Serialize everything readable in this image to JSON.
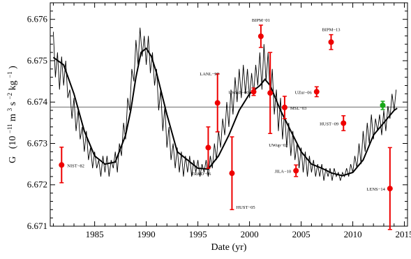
{
  "chart_data": {
    "type": "scatter",
    "xlabel": "Date  (yr)",
    "ylabel_main": "G",
    "ylabel_units": {
      "prefix": "(10",
      "exp1": "−11",
      "mid1": " m",
      "exp2": "3",
      "mid2": " s",
      "exp3": "−2",
      "mid3": " kg",
      "exp4": "−1",
      "suffix": ")"
    },
    "xlim": [
      1980.7,
      2015.3
    ],
    "ylim": [
      6.671,
      6.6764
    ],
    "x_ticks": [
      1985,
      1990,
      1995,
      2000,
      2005,
      2010,
      2015
    ],
    "y_ticks": [
      6.671,
      6.672,
      6.673,
      6.674,
      6.675,
      6.676
    ],
    "x_tick_labels": [
      "1985",
      "1990",
      "1995",
      "2000",
      "2005",
      "2010",
      "2015"
    ],
    "y_tick_labels": [
      "6.671",
      "6.672",
      "6.673",
      "6.674",
      "6.675",
      "6.676"
    ],
    "reference_line": 6.67388,
    "measurements": [
      {
        "label": "NIST−82",
        "x": 1981.8,
        "y": 6.67248,
        "err": 0.00043,
        "color": "#ee0000",
        "label_pos": "right"
      },
      {
        "label": "TR&D−96",
        "x": 1996.0,
        "y": 6.6729,
        "err": 0.0005,
        "color": "#ee0000",
        "label_pos": "below-left"
      },
      {
        "label": "LANL−97",
        "x": 1996.9,
        "y": 6.67398,
        "err": 0.0007,
        "color": "#ee0000",
        "label_pos": "above-right"
      },
      {
        "label": "HUST−05",
        "x": 1998.3,
        "y": 6.67228,
        "err": 0.00088,
        "color": "#ee0000",
        "label_pos": "below-right"
      },
      {
        "label": "UWash−00",
        "x": 2000.4,
        "y": 6.67425,
        "err": 9e-05,
        "color": "#ee0000",
        "label_pos": "left"
      },
      {
        "label": "BIPM−01",
        "x": 2001.1,
        "y": 6.67559,
        "err": 0.00027,
        "color": "#ee0000",
        "label_pos": "above"
      },
      {
        "label": "UWup−02",
        "x": 2002.0,
        "y": 6.67422,
        "err": 0.00098,
        "color": "#ee0000",
        "label_pos": "below-right"
      },
      {
        "label": "MSL−03",
        "x": 2003.4,
        "y": 6.67387,
        "err": 0.00027,
        "color": "#ee0000",
        "label_pos": "right"
      },
      {
        "label": "JILA−10",
        "x": 2004.5,
        "y": 6.67234,
        "err": 0.00014,
        "color": "#ee0000",
        "label_pos": "left"
      },
      {
        "label": "UZur−06",
        "x": 2006.5,
        "y": 6.67425,
        "err": 0.00012,
        "color": "#ee0000",
        "label_pos": "left"
      },
      {
        "label": "BIPM−13",
        "x": 2007.9,
        "y": 6.67545,
        "err": 0.00018,
        "color": "#ee0000",
        "label_pos": "above"
      },
      {
        "label": "HUST−09",
        "x": 2009.1,
        "y": 6.67349,
        "err": 0.00018,
        "color": "#ee0000",
        "label_pos": "left"
      },
      {
        "label": "LENS−14",
        "x": 2013.6,
        "y": 6.67191,
        "err": 0.00099,
        "color": "#ee0000",
        "label_pos": "left"
      },
      {
        "label": "",
        "x": 2012.9,
        "y": 6.67392,
        "err": 0.0001,
        "color": "#1aa81a",
        "label_pos": "none"
      }
    ],
    "smooth_curve": {
      "x": [
        1981.0,
        1982.0,
        1983.0,
        1984.0,
        1985.0,
        1986.0,
        1987.0,
        1988.0,
        1988.5,
        1989.0,
        1989.5,
        1990.0,
        1990.5,
        1991.0,
        1992.0,
        1993.0,
        1994.0,
        1995.0,
        1996.0,
        1997.0,
        1998.0,
        1999.0,
        2000.0,
        2001.0,
        2001.5,
        2002.0,
        2003.0,
        2004.0,
        2005.0,
        2006.0,
        2007.0,
        2008.0,
        2009.0,
        2010.0,
        2011.0,
        2012.0,
        2013.0,
        2014.0,
        2014.3
      ],
      "y": [
        6.67508,
        6.6749,
        6.6742,
        6.6733,
        6.6727,
        6.6725,
        6.67255,
        6.6732,
        6.6738,
        6.6746,
        6.6752,
        6.6753,
        6.6751,
        6.6747,
        6.6737,
        6.6728,
        6.6726,
        6.6724,
        6.67238,
        6.6727,
        6.6732,
        6.6738,
        6.6742,
        6.6744,
        6.67455,
        6.6744,
        6.6738,
        6.6733,
        6.6728,
        6.6725,
        6.6724,
        6.67228,
        6.67222,
        6.6723,
        6.6726,
        6.6732,
        6.6735,
        6.6738,
        6.67385
      ]
    },
    "noisy_curve": {
      "x": [
        1981.0,
        1981.2,
        1981.4,
        1981.6,
        1981.8,
        1982.0,
        1982.2,
        1982.4,
        1982.6,
        1982.8,
        1983.0,
        1983.2,
        1983.4,
        1983.6,
        1983.8,
        1984.0,
        1984.2,
        1984.4,
        1984.6,
        1984.8,
        1985.0,
        1985.2,
        1985.4,
        1985.6,
        1985.8,
        1986.0,
        1986.2,
        1986.4,
        1986.6,
        1986.8,
        1987.0,
        1987.2,
        1987.4,
        1987.6,
        1987.8,
        1988.0,
        1988.2,
        1988.4,
        1988.6,
        1988.8,
        1989.0,
        1989.2,
        1989.4,
        1989.6,
        1989.8,
        1990.0,
        1990.2,
        1990.4,
        1990.6,
        1990.8,
        1991.0,
        1991.2,
        1991.4,
        1991.6,
        1991.8,
        1992.0,
        1992.2,
        1992.4,
        1992.6,
        1992.8,
        1993.0,
        1993.2,
        1993.4,
        1993.6,
        1993.8,
        1994.0,
        1994.2,
        1994.4,
        1994.6,
        1994.8,
        1995.0,
        1995.2,
        1995.4,
        1995.6,
        1995.8,
        1996.0,
        1996.2,
        1996.4,
        1996.6,
        1996.8,
        1997.0,
        1997.2,
        1997.4,
        1997.6,
        1997.8,
        1998.0,
        1998.2,
        1998.4,
        1998.6,
        1998.8,
        1999.0,
        1999.2,
        1999.4,
        1999.6,
        1999.8,
        2000.0,
        2000.2,
        2000.4,
        2000.6,
        2000.8,
        2001.0,
        2001.2,
        2001.4,
        2001.6,
        2001.8,
        2002.0,
        2002.2,
        2002.4,
        2002.6,
        2002.8,
        2003.0,
        2003.2,
        2003.4,
        2003.6,
        2003.8,
        2004.0,
        2004.2,
        2004.4,
        2004.6,
        2004.8,
        2005.0,
        2005.2,
        2005.4,
        2005.6,
        2005.8,
        2006.0,
        2006.2,
        2006.4,
        2006.6,
        2006.8,
        2007.0,
        2007.2,
        2007.4,
        2007.6,
        2007.8,
        2008.0,
        2008.2,
        2008.4,
        2008.6,
        2008.8,
        2009.0,
        2009.2,
        2009.4,
        2009.6,
        2009.8,
        2010.0,
        2010.2,
        2010.4,
        2010.6,
        2010.8,
        2011.0,
        2011.2,
        2011.4,
        2011.6,
        2011.8,
        2012.0,
        2012.2,
        2012.4,
        2012.6,
        2012.8,
        2013.0,
        2013.2,
        2013.4,
        2013.6,
        2013.8,
        2014.0,
        2014.2
      ],
      "y": [
        6.6757,
        6.6746,
        6.6752,
        6.6743,
        6.6751,
        6.6744,
        6.675,
        6.6741,
        6.6743,
        6.6736,
        6.6741,
        6.6733,
        6.6738,
        6.6731,
        6.6734,
        6.6728,
        6.6733,
        6.6726,
        6.6729,
        6.6724,
        6.6728,
        6.6724,
        6.6726,
        6.6722,
        6.6727,
        6.6723,
        6.6727,
        6.6722,
        6.6726,
        6.6724,
        6.6728,
        6.6723,
        6.673,
        6.6727,
        6.6735,
        6.6731,
        6.6741,
        6.6738,
        6.6748,
        6.6745,
        6.6755,
        6.6749,
        6.6758,
        6.6751,
        6.6756,
        6.6749,
        6.6756,
        6.6747,
        6.6752,
        6.6744,
        6.6748,
        6.6738,
        6.6743,
        6.6733,
        6.6739,
        6.6729,
        6.6734,
        6.6726,
        6.673,
        6.6724,
        6.6729,
        6.6723,
        6.6728,
        6.6722,
        6.6727,
        6.6723,
        6.6727,
        6.6722,
        6.6726,
        6.6723,
        6.6726,
        6.6722,
        6.6725,
        6.6723,
        6.6726,
        6.6722,
        6.6727,
        6.6724,
        6.673,
        6.6726,
        6.6733,
        6.6729,
        6.6736,
        6.6732,
        6.674,
        6.6734,
        6.6743,
        6.6737,
        6.6746,
        6.674,
        6.6748,
        6.6741,
        6.6749,
        6.6742,
        6.6748,
        6.6741,
        6.6747,
        6.6742,
        6.6749,
        6.6744,
        6.6752,
        6.6743,
        6.6754,
        6.6745,
        6.6752,
        6.6741,
        6.6748,
        6.6737,
        6.6743,
        6.6733,
        6.6741,
        6.6731,
        6.6738,
        6.6729,
        6.6735,
        6.6727,
        6.6733,
        6.6726,
        6.673,
        6.6724,
        6.6729,
        6.6723,
        6.6728,
        6.6722,
        6.6727,
        6.6723,
        6.6726,
        6.6722,
        6.6725,
        6.6722,
        6.6725,
        6.6721,
        6.6724,
        6.6722,
        6.6724,
        6.6721,
        6.6724,
        6.6722,
        6.6723,
        6.6721,
        6.6723,
        6.6722,
        6.6724,
        6.6722,
        6.6725,
        6.6723,
        6.6727,
        6.6724,
        6.673,
        6.6725,
        6.6733,
        6.6728,
        6.6735,
        6.673,
        6.6737,
        6.6731,
        6.6736,
        6.6733,
        6.6737,
        6.6732,
        6.6738,
        6.6733,
        6.6739,
        6.6736,
        6.6742,
        6.6738,
        6.6743
      ]
    },
    "legend": "none",
    "grid": false
  }
}
